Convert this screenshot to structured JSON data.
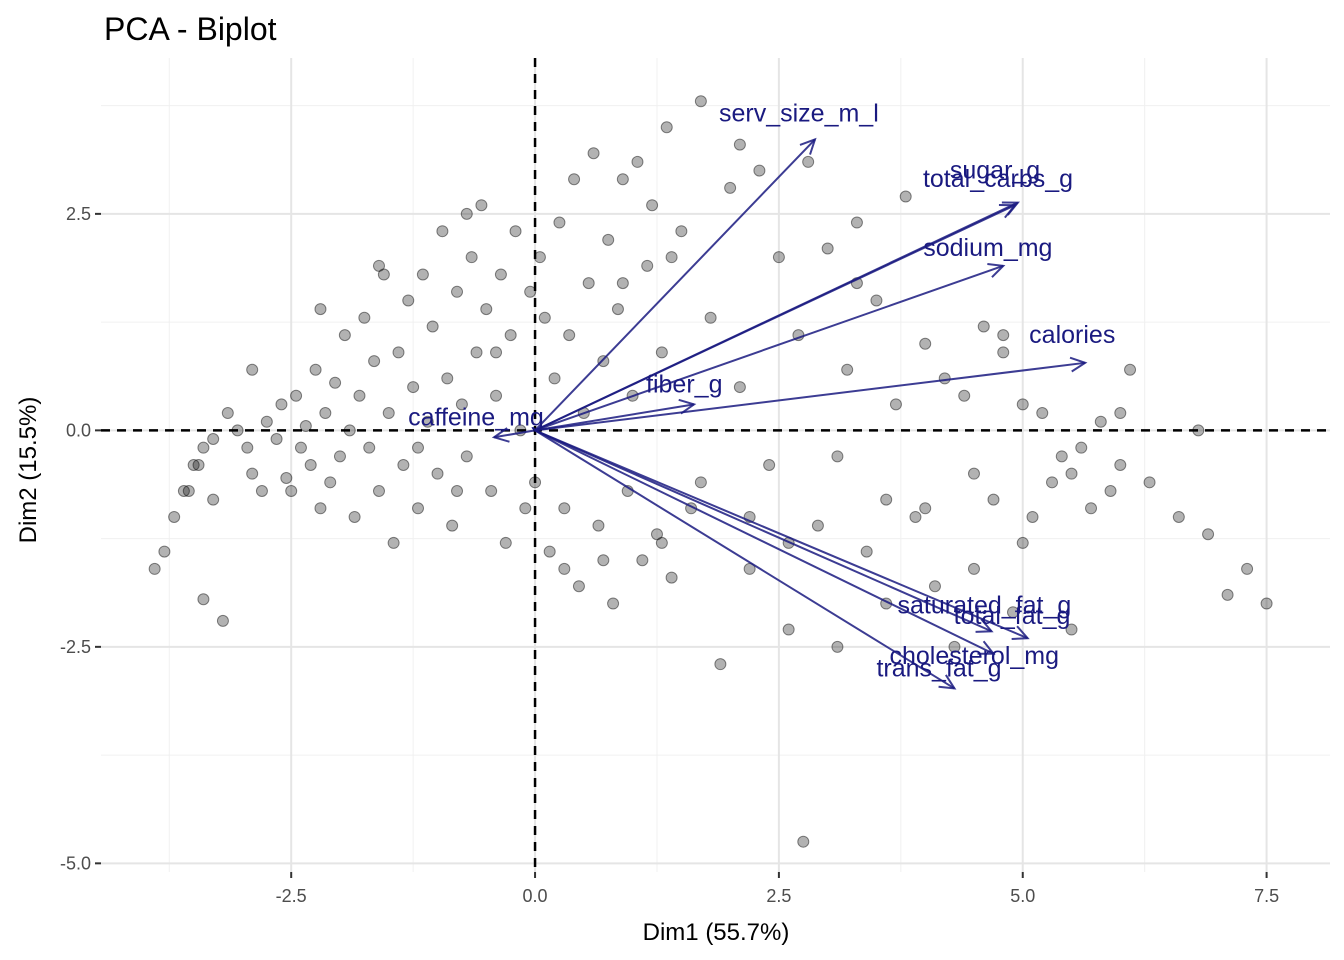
{
  "chart_data": {
    "type": "scatter",
    "title": "PCA - Biplot",
    "xlabel": "Dim1 (55.7%)",
    "ylabel": "Dim2 (15.5%)",
    "xlim": [
      -4.45,
      8.15
    ],
    "ylim": [
      -5.1,
      4.3
    ],
    "x_ticks": [
      -2.5,
      0.0,
      2.5,
      5.0,
      7.5
    ],
    "x_tick_labels": [
      "-2.5",
      "0.0",
      "2.5",
      "5.0",
      "7.5"
    ],
    "y_ticks": [
      2.5,
      0.0,
      -2.5,
      -5.0
    ],
    "y_tick_labels": [
      "2.5",
      "0.0",
      "-2.5",
      "-5.0"
    ],
    "grid": true,
    "reference_lines": {
      "x": 0,
      "y": 0,
      "style": "dashed"
    },
    "point_color": "#000000",
    "point_alpha": 0.3,
    "arrow_color": "#1a1a80",
    "points_note_hidden": "",
    "points": [
      [
        -3.9,
        -1.6
      ],
      [
        -3.8,
        -1.4
      ],
      [
        -3.7,
        -1.0
      ],
      [
        -3.6,
        -0.7
      ],
      [
        -3.55,
        -0.7
      ],
      [
        -3.5,
        -0.4
      ],
      [
        -3.45,
        -0.4
      ],
      [
        -3.4,
        -0.2
      ],
      [
        -3.3,
        -0.1
      ],
      [
        -3.2,
        -2.2
      ],
      [
        -3.4,
        -1.95
      ],
      [
        -3.3,
        -0.8
      ],
      [
        -3.15,
        0.2
      ],
      [
        -3.05,
        0.0
      ],
      [
        -2.95,
        -0.2
      ],
      [
        -2.9,
        -0.5
      ],
      [
        -2.8,
        -0.7
      ],
      [
        -2.75,
        0.1
      ],
      [
        -2.65,
        -0.1
      ],
      [
        -2.6,
        0.3
      ],
      [
        -2.55,
        -0.55
      ],
      [
        -2.5,
        -0.7
      ],
      [
        -2.45,
        0.4
      ],
      [
        -2.4,
        -0.2
      ],
      [
        -2.35,
        0.05
      ],
      [
        -2.3,
        -0.4
      ],
      [
        -2.25,
        0.7
      ],
      [
        -2.2,
        -0.9
      ],
      [
        -2.15,
        0.2
      ],
      [
        -2.1,
        -0.6
      ],
      [
        -2.05,
        0.55
      ],
      [
        -2.0,
        -0.3
      ],
      [
        -1.95,
        1.1
      ],
      [
        -1.9,
        0.0
      ],
      [
        -1.85,
        -1.0
      ],
      [
        -1.8,
        0.4
      ],
      [
        -1.75,
        1.3
      ],
      [
        -1.7,
        -0.2
      ],
      [
        -1.65,
        0.8
      ],
      [
        -1.6,
        -0.7
      ],
      [
        -1.55,
        1.8
      ],
      [
        -1.5,
        0.2
      ],
      [
        -1.45,
        -1.3
      ],
      [
        -1.4,
        0.9
      ],
      [
        -1.35,
        -0.4
      ],
      [
        -1.3,
        1.5
      ],
      [
        -1.25,
        0.5
      ],
      [
        -1.2,
        -0.9
      ],
      [
        -1.15,
        1.8
      ],
      [
        -1.1,
        0.1
      ],
      [
        -1.05,
        1.2
      ],
      [
        -1.0,
        -0.5
      ],
      [
        -0.95,
        2.3
      ],
      [
        -0.9,
        0.6
      ],
      [
        -0.85,
        -1.1
      ],
      [
        -0.8,
        1.6
      ],
      [
        -0.75,
        0.3
      ],
      [
        -0.7,
        -0.3
      ],
      [
        -0.65,
        2.0
      ],
      [
        -0.6,
        0.9
      ],
      [
        -0.55,
        2.6
      ],
      [
        -0.5,
        1.4
      ],
      [
        -0.45,
        -0.7
      ],
      [
        -0.4,
        0.4
      ],
      [
        -0.35,
        1.8
      ],
      [
        -0.3,
        -1.3
      ],
      [
        -0.25,
        1.1
      ],
      [
        -0.2,
        2.3
      ],
      [
        -0.15,
        0.0
      ],
      [
        -0.1,
        -0.9
      ],
      [
        -0.05,
        1.6
      ],
      [
        0.0,
        -0.6
      ],
      [
        0.05,
        2.0
      ],
      [
        0.1,
        1.3
      ],
      [
        0.15,
        -1.4
      ],
      [
        0.2,
        0.6
      ],
      [
        0.25,
        2.4
      ],
      [
        0.3,
        -0.9
      ],
      [
        0.35,
        1.1
      ],
      [
        0.4,
        2.9
      ],
      [
        0.45,
        -1.8
      ],
      [
        0.5,
        0.2
      ],
      [
        0.55,
        1.7
      ],
      [
        0.6,
        3.2
      ],
      [
        0.65,
        -1.1
      ],
      [
        0.7,
        0.8
      ],
      [
        0.75,
        2.2
      ],
      [
        0.8,
        -2.0
      ],
      [
        0.85,
        1.4
      ],
      [
        0.9,
        2.9
      ],
      [
        0.95,
        -0.7
      ],
      [
        1.0,
        0.4
      ],
      [
        1.05,
        3.1
      ],
      [
        1.1,
        -1.5
      ],
      [
        1.15,
        1.9
      ],
      [
        1.2,
        2.6
      ],
      [
        1.25,
        -1.2
      ],
      [
        1.3,
        0.9
      ],
      [
        1.35,
        3.5
      ],
      [
        1.4,
        -1.7
      ],
      [
        1.5,
        2.3
      ],
      [
        1.6,
        -0.9
      ],
      [
        1.7,
        3.8
      ],
      [
        1.8,
        1.3
      ],
      [
        1.9,
        -2.7
      ],
      [
        2.0,
        2.8
      ],
      [
        2.1,
        0.5
      ],
      [
        2.2,
        -1.6
      ],
      [
        2.3,
        3.0
      ],
      [
        2.4,
        -0.4
      ],
      [
        2.5,
        2.0
      ],
      [
        2.6,
        -2.3
      ],
      [
        2.7,
        1.1
      ],
      [
        2.8,
        3.1
      ],
      [
        2.9,
        -1.1
      ],
      [
        3.0,
        2.1
      ],
      [
        3.1,
        -2.5
      ],
      [
        3.2,
        0.7
      ],
      [
        3.3,
        2.4
      ],
      [
        3.4,
        -1.4
      ],
      [
        3.5,
        1.5
      ],
      [
        3.6,
        -2.0
      ],
      [
        3.7,
        0.3
      ],
      [
        3.8,
        2.7
      ],
      [
        3.9,
        -1.0
      ],
      [
        4.0,
        1.0
      ],
      [
        4.1,
        -1.8
      ],
      [
        4.2,
        0.6
      ],
      [
        4.3,
        -2.5
      ],
      [
        4.4,
        0.4
      ],
      [
        4.5,
        -1.6
      ],
      [
        4.6,
        1.2
      ],
      [
        4.7,
        -0.8
      ],
      [
        4.8,
        0.9
      ],
      [
        4.9,
        -2.1
      ],
      [
        5.0,
        0.3
      ],
      [
        5.1,
        -1.0
      ],
      [
        5.2,
        0.2
      ],
      [
        5.3,
        -0.6
      ],
      [
        5.4,
        -0.3
      ],
      [
        5.5,
        -2.3
      ],
      [
        5.6,
        -0.2
      ],
      [
        5.7,
        -0.9
      ],
      [
        5.8,
        0.1
      ],
      [
        5.9,
        -0.7
      ],
      [
        6.0,
        0.2
      ],
      [
        6.1,
        0.7
      ],
      [
        6.3,
        -0.6
      ],
      [
        6.6,
        -1.0
      ],
      [
        6.8,
        0.0
      ],
      [
        6.9,
        -1.2
      ],
      [
        7.1,
        -1.9
      ],
      [
        7.3,
        -1.6
      ],
      [
        7.5,
        -2.0
      ],
      [
        2.75,
        -4.75
      ],
      [
        -2.9,
        0.7
      ],
      [
        -2.2,
        1.4
      ],
      [
        -1.6,
        1.9
      ],
      [
        -0.7,
        2.5
      ],
      [
        0.3,
        -1.6
      ],
      [
        0.7,
        -1.5
      ],
      [
        1.3,
        -1.3
      ],
      [
        1.7,
        -0.6
      ],
      [
        2.2,
        -1.0
      ],
      [
        2.6,
        -1.3
      ],
      [
        3.1,
        -0.3
      ],
      [
        3.6,
        -0.8
      ],
      [
        4.0,
        -0.9
      ],
      [
        4.5,
        -0.5
      ],
      [
        5.0,
        -1.3
      ],
      [
        5.5,
        -0.5
      ],
      [
        6.0,
        -0.4
      ],
      [
        -1.2,
        -0.2
      ],
      [
        -0.8,
        -0.7
      ],
      [
        -0.4,
        0.9
      ],
      [
        0.9,
        1.7
      ],
      [
        1.4,
        2.0
      ],
      [
        2.1,
        3.3
      ],
      [
        3.3,
        1.7
      ],
      [
        4.8,
        1.1
      ]
    ],
    "variables": [
      {
        "name": "serv_size_m_l",
        "x": 2.87,
        "y": 3.36
      },
      {
        "name": "sugar_g",
        "x": 4.95,
        "y": 2.63
      },
      {
        "name": "total_carbs_g",
        "x": 4.92,
        "y": 2.6
      },
      {
        "name": "sodium_mg",
        "x": 4.8,
        "y": 1.9
      },
      {
        "name": "calories",
        "x": 5.64,
        "y": 0.78
      },
      {
        "name": "fiber_g",
        "x": 1.63,
        "y": 0.3
      },
      {
        "name": "caffeine_mg",
        "x": -0.42,
        "y": -0.08
      },
      {
        "name": "saturated_fat_g",
        "x": 4.68,
        "y": -2.32
      },
      {
        "name": "total_fat_g",
        "x": 5.05,
        "y": -2.4
      },
      {
        "name": "cholesterol_mg",
        "x": 4.7,
        "y": -2.58
      },
      {
        "name": "trans_fat_g",
        "x": 4.3,
        "y": -2.98
      }
    ]
  }
}
